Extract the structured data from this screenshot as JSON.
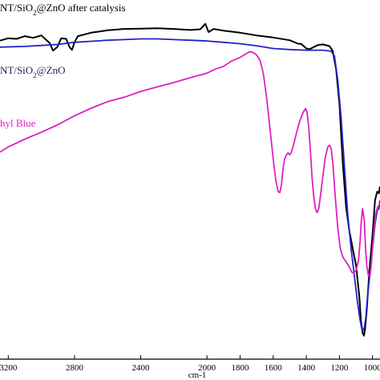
{
  "chart_data": {
    "type": "line",
    "xlabel": "cm-1",
    "ylabel": "",
    "x_reversed": true,
    "xlim": [
      3250,
      955
    ],
    "ylim": [
      0,
      100
    ],
    "grid": false,
    "ticks": {
      "x": [
        {
          "value": 3200,
          "label": "3200"
        },
        {
          "value": 2800,
          "label": "2800"
        },
        {
          "value": 2400,
          "label": "2400"
        },
        {
          "value": 2000,
          "label": "2000"
        },
        {
          "value": 1800,
          "label": "1800"
        },
        {
          "value": 1600,
          "label": "1600"
        },
        {
          "value": 1400,
          "label": "1400"
        },
        {
          "value": 1200,
          "label": "1200"
        },
        {
          "value": 1000,
          "label": "1000"
        }
      ]
    },
    "series": [
      {
        "name": "NT/SiO2@ZnO after catalysis",
        "label_parts": [
          "NT/SiO",
          "2",
          "@ZnO after catalysis"
        ],
        "color": "#000000",
        "points": [
          [
            3250,
            90.5
          ],
          [
            3200,
            91.2
          ],
          [
            3150,
            91.0
          ],
          [
            3100,
            91.8
          ],
          [
            3050,
            91.3
          ],
          [
            3000,
            92.0
          ],
          [
            2950,
            89.8
          ],
          [
            2930,
            87.6
          ],
          [
            2905,
            88.6
          ],
          [
            2880,
            91.2
          ],
          [
            2850,
            91.0
          ],
          [
            2830,
            88.6
          ],
          [
            2815,
            87.8
          ],
          [
            2800,
            90.0
          ],
          [
            2780,
            91.8
          ],
          [
            2700,
            92.8
          ],
          [
            2600,
            93.5
          ],
          [
            2500,
            93.9
          ],
          [
            2400,
            94.0
          ],
          [
            2300,
            94.1
          ],
          [
            2200,
            93.9
          ],
          [
            2100,
            93.6
          ],
          [
            2040,
            93.8
          ],
          [
            2010,
            95.4
          ],
          [
            1990,
            93.0
          ],
          [
            1960,
            93.9
          ],
          [
            1900,
            93.4
          ],
          [
            1800,
            92.8
          ],
          [
            1700,
            92.0
          ],
          [
            1600,
            91.4
          ],
          [
            1500,
            90.6
          ],
          [
            1450,
            89.6
          ],
          [
            1430,
            89.5
          ],
          [
            1400,
            88.2
          ],
          [
            1380,
            88.0
          ],
          [
            1360,
            88.5
          ],
          [
            1330,
            89.2
          ],
          [
            1300,
            89.4
          ],
          [
            1260,
            88.9
          ],
          [
            1240,
            87.5
          ],
          [
            1220,
            82.0
          ],
          [
            1200,
            72.0
          ],
          [
            1180,
            55.0
          ],
          [
            1160,
            42.0
          ],
          [
            1140,
            35.0
          ],
          [
            1120,
            30.0
          ],
          [
            1100,
            25.0
          ],
          [
            1080,
            16.0
          ],
          [
            1070,
            9.0
          ],
          [
            1060,
            5.3
          ],
          [
            1052,
            4.5
          ],
          [
            1045,
            6.5
          ],
          [
            1035,
            12.0
          ],
          [
            1020,
            23.0
          ],
          [
            1000,
            34.0
          ],
          [
            985,
            44.0
          ],
          [
            972,
            46.5
          ],
          [
            962,
            46.0
          ],
          [
            955,
            48.0
          ]
        ]
      },
      {
        "name": "NT/SiO2@ZnO",
        "label_parts": [
          "NT/SiO",
          "2",
          "@ZnO"
        ],
        "color": "#2222cc",
        "points": [
          [
            3250,
            88.6
          ],
          [
            3100,
            88.8
          ],
          [
            3000,
            89.1
          ],
          [
            2900,
            89.4
          ],
          [
            2800,
            90.0
          ],
          [
            2700,
            90.3
          ],
          [
            2600,
            90.6
          ],
          [
            2500,
            90.8
          ],
          [
            2400,
            91.0
          ],
          [
            2300,
            91.0
          ],
          [
            2200,
            90.8
          ],
          [
            2100,
            90.6
          ],
          [
            2000,
            90.4
          ],
          [
            1900,
            90.0
          ],
          [
            1800,
            89.6
          ],
          [
            1700,
            89.0
          ],
          [
            1600,
            88.2
          ],
          [
            1500,
            87.9
          ],
          [
            1400,
            87.7
          ],
          [
            1300,
            87.7
          ],
          [
            1250,
            87.4
          ],
          [
            1230,
            86.0
          ],
          [
            1210,
            79.0
          ],
          [
            1190,
            68.0
          ],
          [
            1170,
            54.0
          ],
          [
            1150,
            40.0
          ],
          [
            1130,
            30.0
          ],
          [
            1110,
            22.0
          ],
          [
            1090,
            14.0
          ],
          [
            1075,
            9.0
          ],
          [
            1065,
            6.5
          ],
          [
            1058,
            6.0
          ],
          [
            1050,
            6.8
          ],
          [
            1040,
            10.0
          ],
          [
            1030,
            16.0
          ],
          [
            1015,
            23.0
          ],
          [
            1000,
            30.0
          ],
          [
            985,
            37.0
          ],
          [
            972,
            41.0
          ],
          [
            962,
            41.5
          ],
          [
            955,
            44.0
          ]
        ]
      },
      {
        "name": "Methyl Blue",
        "label_parts": [
          "hyl Blue"
        ],
        "color": "#e020c0",
        "points": [
          [
            3250,
            58.0
          ],
          [
            3200,
            59.5
          ],
          [
            3100,
            61.8
          ],
          [
            3000,
            63.8
          ],
          [
            2900,
            66.0
          ],
          [
            2800,
            68.6
          ],
          [
            2700,
            70.8
          ],
          [
            2600,
            72.7
          ],
          [
            2500,
            74.0
          ],
          [
            2400,
            75.7
          ],
          [
            2300,
            77.0
          ],
          [
            2200,
            78.3
          ],
          [
            2100,
            79.7
          ],
          [
            2000,
            81.0
          ],
          [
            1950,
            82.2
          ],
          [
            1900,
            83.0
          ],
          [
            1850,
            84.6
          ],
          [
            1800,
            85.6
          ],
          [
            1760,
            86.8
          ],
          [
            1740,
            87.3
          ],
          [
            1720,
            87.0
          ],
          [
            1700,
            86.3
          ],
          [
            1680,
            84.8
          ],
          [
            1660,
            81.0
          ],
          [
            1640,
            74.0
          ],
          [
            1620,
            65.0
          ],
          [
            1600,
            56.0
          ],
          [
            1585,
            50.0
          ],
          [
            1570,
            46.5
          ],
          [
            1560,
            46.2
          ],
          [
            1550,
            48.5
          ],
          [
            1540,
            53.5
          ],
          [
            1530,
            56.2
          ],
          [
            1520,
            57.2
          ],
          [
            1510,
            57.8
          ],
          [
            1500,
            57.2
          ],
          [
            1490,
            58.0
          ],
          [
            1475,
            60.5
          ],
          [
            1460,
            63.5
          ],
          [
            1440,
            67.0
          ],
          [
            1420,
            69.5
          ],
          [
            1405,
            70.7
          ],
          [
            1395,
            69.5
          ],
          [
            1385,
            65.0
          ],
          [
            1375,
            58.0
          ],
          [
            1365,
            50.5
          ],
          [
            1355,
            45.0
          ],
          [
            1345,
            41.5
          ],
          [
            1335,
            40.4
          ],
          [
            1325,
            41.5
          ],
          [
            1315,
            45.0
          ],
          [
            1300,
            51.0
          ],
          [
            1285,
            56.5
          ],
          [
            1270,
            59.5
          ],
          [
            1260,
            60.0
          ],
          [
            1250,
            59.0
          ],
          [
            1240,
            55.0
          ],
          [
            1225,
            45.0
          ],
          [
            1210,
            36.0
          ],
          [
            1195,
            30.0
          ],
          [
            1180,
            27.5
          ],
          [
            1160,
            26.0
          ],
          [
            1140,
            24.5
          ],
          [
            1125,
            23.0
          ],
          [
            1115,
            22.8
          ],
          [
            1100,
            23.5
          ],
          [
            1085,
            26.5
          ],
          [
            1075,
            32.0
          ],
          [
            1068,
            38.0
          ],
          [
            1060,
            41.5
          ],
          [
            1050,
            38.0
          ],
          [
            1042,
            30.0
          ],
          [
            1035,
            25.0
          ],
          [
            1025,
            22.0
          ],
          [
            1015,
            22.0
          ],
          [
            1008,
            25.0
          ],
          [
            1000,
            30.0
          ],
          [
            990,
            36.0
          ],
          [
            980,
            40.0
          ],
          [
            970,
            42.0
          ],
          [
            962,
            42.5
          ],
          [
            955,
            43.0
          ]
        ]
      }
    ]
  }
}
